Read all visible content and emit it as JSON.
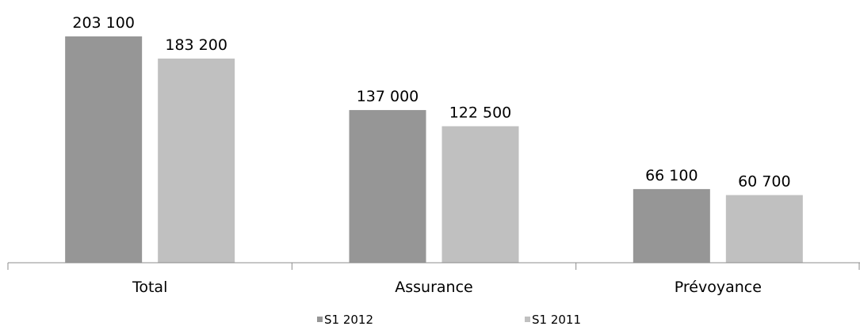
{
  "chart_data": {
    "type": "bar",
    "categories": [
      "Total",
      "Assurance",
      "Prévoyance"
    ],
    "series": [
      {
        "name": "S1 2012",
        "color": "#969696",
        "values": [
          203100,
          137000,
          66100
        ],
        "labels": [
          "203 100",
          "137 000",
          "66 100"
        ]
      },
      {
        "name": "S1 2011",
        "color": "#c0c0c0",
        "values": [
          183200,
          122500,
          60700
        ],
        "labels": [
          "183 200",
          "122 500",
          "60 700"
        ]
      }
    ],
    "ylim": [
      0,
      210000
    ],
    "grid": false,
    "legend_position": "bottom"
  }
}
